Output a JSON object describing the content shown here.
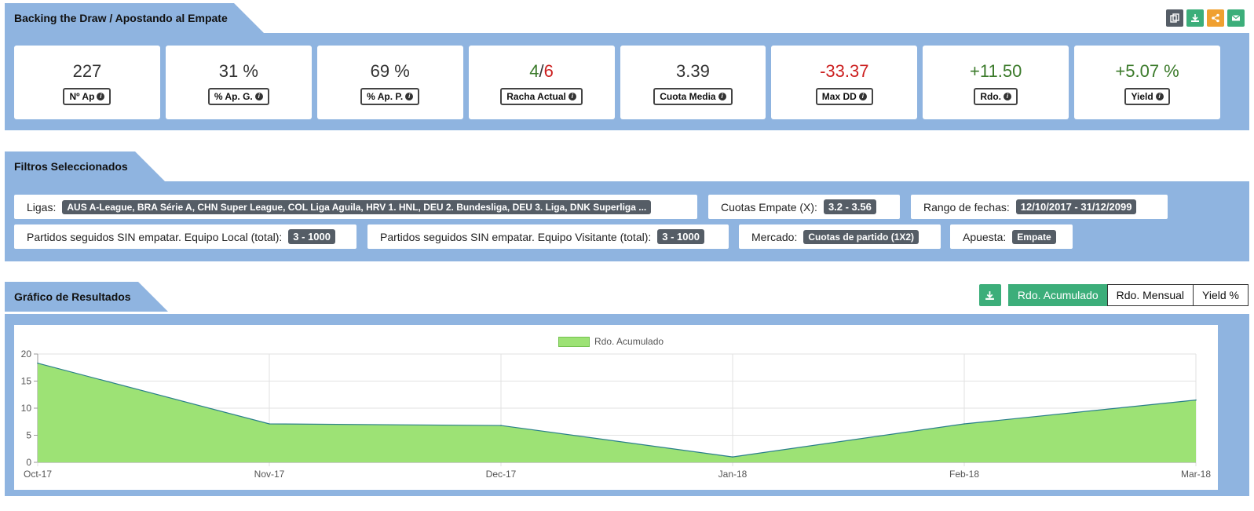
{
  "header": {
    "title": "Backing the Draw / Apostando al Empate",
    "toolbar": [
      {
        "name": "copy-icon",
        "color": "#555d66"
      },
      {
        "name": "download-icon",
        "color": "#3cae7a"
      },
      {
        "name": "share-icon",
        "color": "#f0a030"
      },
      {
        "name": "mail-icon",
        "color": "#3cae7a"
      }
    ]
  },
  "stats": [
    {
      "label": "Nº Ap",
      "value": "227"
    },
    {
      "label": "% Ap. G.",
      "value": "31 %"
    },
    {
      "label": "% Ap. P.",
      "value": "69 %"
    },
    {
      "label": "Racha Actual",
      "value_a": "4",
      "sep": "/",
      "value_b": "6"
    },
    {
      "label": "Cuota Media",
      "value": "3.39"
    },
    {
      "label": "Max DD",
      "value": "-33.37"
    },
    {
      "label": "Rdo.",
      "value": "+11.50"
    },
    {
      "label": "Yield",
      "value": "+5.07 %"
    }
  ],
  "filters": {
    "title": "Filtros Seleccionados",
    "ligas_label": "Ligas:",
    "ligas_value": "AUS A-League, BRA Série A, CHN Super League, COL Liga Aguila, HRV 1. HNL, DEU 2. Bundesliga, DEU 3. Liga, DNK Superliga ...",
    "cuotas_label": "Cuotas Empate (X):",
    "cuotas_value": "3.2 - 3.56",
    "rango_label": "Rango de fechas:",
    "rango_value": "12/10/2017 - 31/12/2099",
    "local_label": "Partidos seguidos SIN empatar. Equipo Local (total):",
    "local_value": "3 - 1000",
    "visit_label": "Partidos seguidos SIN empatar. Equipo Visitante (total):",
    "visit_value": "3 - 1000",
    "mercado_label": "Mercado:",
    "mercado_value": "Cuotas de partido (1X2)",
    "apuesta_label": "Apuesta:",
    "apuesta_value": "Empate"
  },
  "chart": {
    "title": "Gráfico de Resultados",
    "buttons": [
      "Rdo. Acumulado",
      "Rdo. Mensual",
      "Yield %"
    ],
    "active": "Rdo. Acumulado"
  },
  "chart_data": {
    "type": "area",
    "categories": [
      "Oct-17",
      "Nov-17",
      "Dec-17",
      "Jan-18",
      "Feb-18",
      "Mar-18"
    ],
    "series": [
      {
        "name": "Rdo. Acumulado",
        "values": [
          18.3,
          7.1,
          6.8,
          1.0,
          7.1,
          11.5
        ]
      }
    ],
    "yticks": [
      0,
      5,
      10,
      15,
      20
    ],
    "ylim": [
      0,
      20
    ],
    "legend": "top-center",
    "grid": true,
    "fill_color": "#9de275",
    "line_color": "#2a7f8a"
  }
}
